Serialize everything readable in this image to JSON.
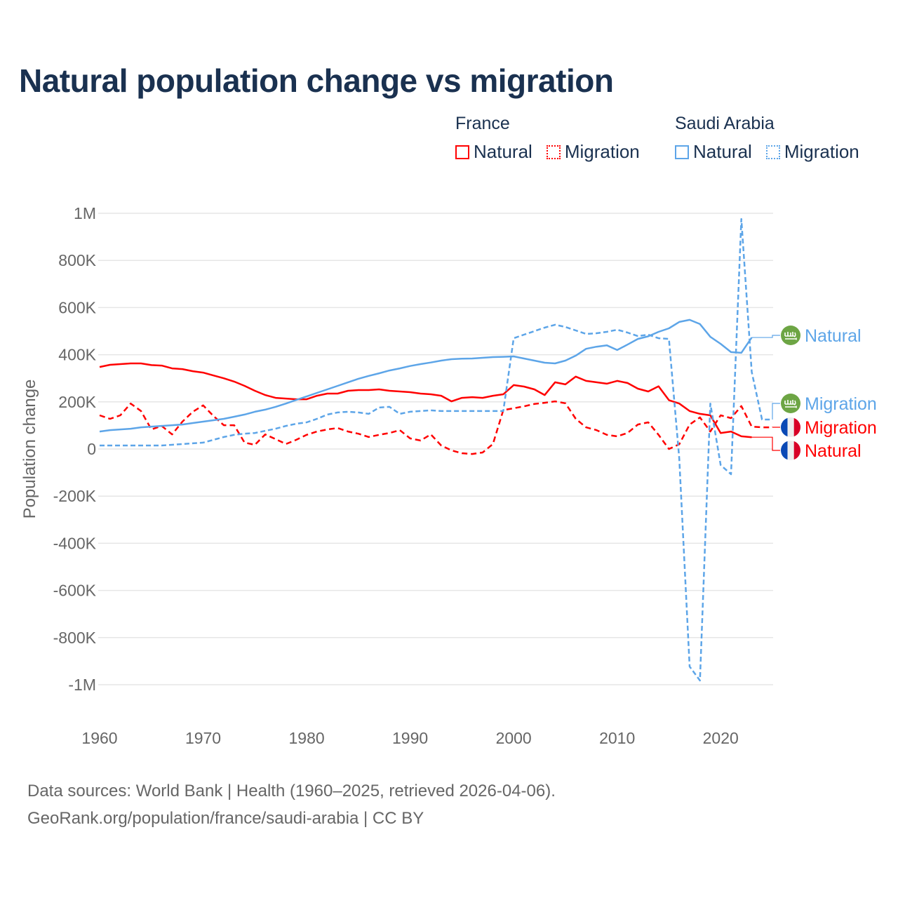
{
  "chart_data": {
    "type": "line",
    "title": "Natural population change vs migration",
    "xlabel": "",
    "ylabel": "Population change",
    "xlim": [
      1960,
      2025
    ],
    "ylim": [
      -1000000,
      1000000
    ],
    "x_ticks": [
      1960,
      1970,
      1980,
      1990,
      2000,
      2010,
      2020
    ],
    "x_tick_labels": [
      "1960",
      "1970",
      "1980",
      "1990",
      "2000",
      "2010",
      "2020"
    ],
    "y_ticks": [
      1000000,
      800000,
      600000,
      400000,
      200000,
      0,
      -200000,
      -400000,
      -600000,
      -800000,
      -1000000
    ],
    "y_tick_labels": [
      "1M",
      "800K",
      "600K",
      "400K",
      "200K",
      "0",
      "-200K",
      "-400K",
      "-600K",
      "-800K",
      "-1M"
    ],
    "grid": true,
    "legend_placement": "top-right",
    "legend_groups": [
      {
        "country": "France",
        "items": [
          "Natural",
          "Migration"
        ]
      },
      {
        "country": "Saudi Arabia",
        "items": [
          "Natural",
          "Migration"
        ]
      }
    ],
    "series": [
      {
        "name": "France Natural",
        "country": "France",
        "kind": "Natural",
        "label": "Natural",
        "color": "#ff0000",
        "style": "solid",
        "icon": "france-flag-icon",
        "start_year": 1960,
        "values": [
          348000,
          357000,
          360000,
          363000,
          363000,
          356000,
          354000,
          342000,
          339000,
          330000,
          324000,
          312000,
          300000,
          286000,
          268000,
          247000,
          229000,
          217000,
          214000,
          211000,
          211000,
          226000,
          235000,
          235000,
          247000,
          250000,
          250000,
          253000,
          247000,
          244000,
          241000,
          235000,
          232000,
          226000,
          202000,
          217000,
          220000,
          217000,
          226000,
          232000,
          271000,
          265000,
          253000,
          229000,
          283000,
          274000,
          307000,
          289000,
          283000,
          277000,
          289000,
          280000,
          256000,
          244000,
          266000,
          207000,
          193000,
          161000,
          149000,
          143000,
          68000,
          74000,
          54000,
          50000
        ]
      },
      {
        "name": "France Migration",
        "country": "France",
        "kind": "Migration",
        "label": "Migration",
        "color": "#ff0000",
        "style": "dashed",
        "icon": "france-flag-icon",
        "start_year": 1960,
        "values": [
          143000,
          128000,
          143000,
          193000,
          161000,
          83000,
          98000,
          62000,
          116000,
          158000,
          185000,
          140000,
          101000,
          101000,
          27000,
          18000,
          62000,
          42000,
          21000,
          39000,
          60000,
          74000,
          83000,
          89000,
          74000,
          65000,
          51000,
          60000,
          68000,
          80000,
          45000,
          36000,
          62000,
          15000,
          -6000,
          -18000,
          -21000,
          -15000,
          21000,
          165000,
          173000,
          181000,
          191000,
          196000,
          202000,
          194000,
          128000,
          92000,
          80000,
          60000,
          54000,
          68000,
          104000,
          113000,
          60000,
          0,
          20000,
          104000,
          134000,
          74000,
          143000,
          131000,
          182000,
          95000,
          92000,
          92000
        ]
      },
      {
        "name": "Saudi Arabia Natural",
        "country": "Saudi Arabia",
        "kind": "Natural",
        "label": "Natural",
        "color": "#5da5e8",
        "style": "solid",
        "icon": "saudi-flag-icon",
        "start_year": 1960,
        "values": [
          74000,
          80000,
          83000,
          86000,
          92000,
          95000,
          98000,
          101000,
          104000,
          110000,
          116000,
          122000,
          128000,
          137000,
          146000,
          158000,
          167000,
          179000,
          193000,
          208000,
          223000,
          238000,
          253000,
          268000,
          283000,
          298000,
          310000,
          321000,
          333000,
          342000,
          352000,
          360000,
          367000,
          375000,
          381000,
          383000,
          384000,
          387000,
          390000,
          391000,
          393000,
          384000,
          375000,
          366000,
          363000,
          375000,
          396000,
          425000,
          434000,
          440000,
          420000,
          443000,
          467000,
          478000,
          497000,
          512000,
          539000,
          548000,
          530000,
          476000,
          446000,
          411000,
          408000,
          473000
        ]
      },
      {
        "name": "Saudi Arabia Migration",
        "country": "Saudi Arabia",
        "kind": "Migration",
        "label": "Migration",
        "color": "#5da5e8",
        "style": "dashed",
        "icon": "saudi-flag-icon",
        "start_year": 1960,
        "values": [
          15000,
          15000,
          15000,
          15000,
          15000,
          15000,
          15000,
          18000,
          21000,
          24000,
          27000,
          39000,
          51000,
          60000,
          65000,
          68000,
          77000,
          86000,
          98000,
          107000,
          113000,
          128000,
          146000,
          155000,
          158000,
          155000,
          149000,
          176000,
          179000,
          149000,
          158000,
          161000,
          164000,
          161000,
          161000,
          161000,
          161000,
          161000,
          161000,
          161000,
          470000,
          485000,
          500000,
          515000,
          527000,
          518000,
          503000,
          488000,
          491000,
          497000,
          506000,
          494000,
          479000,
          485000,
          470000,
          467000,
          -40000,
          -923000,
          -982000,
          193000,
          -68000,
          -107000,
          976000,
          327000,
          125000,
          125000
        ]
      }
    ]
  },
  "footer": {
    "line1": "Data sources: World Bank | Health (1960–2025, retrieved 2026-04-06).",
    "line2": "GeoRank.org/population/france/saudi-arabia | CC BY"
  }
}
